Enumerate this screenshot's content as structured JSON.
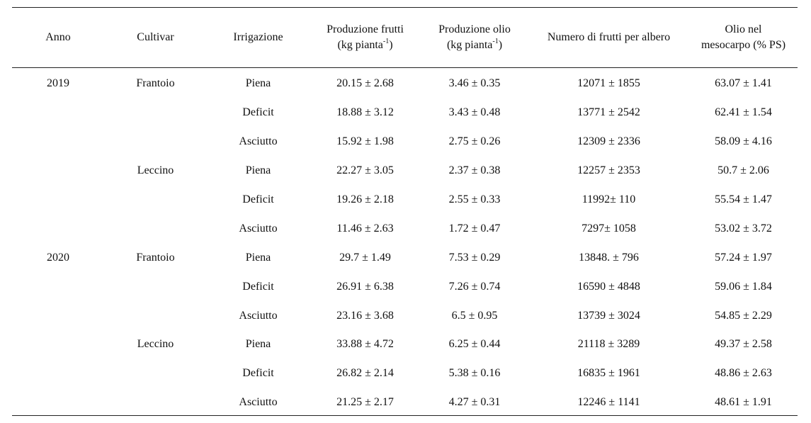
{
  "headers": {
    "anno": "Anno",
    "cultivar": "Cultivar",
    "irrigazione": "Irrigazione",
    "prod_frutti_1": "Produzione frutti",
    "prod_frutti_2": "(kg pianta",
    "prod_frutti_sup": "-1",
    "prod_frutti_3": ")",
    "prod_olio_1": "Produzione olio",
    "prod_olio_2": "(kg pianta",
    "prod_olio_sup": "-1",
    "prod_olio_3": ")",
    "numero_frutti": "Numero di frutti per albero",
    "olio_mesocarpo_1": "Olio nel",
    "olio_mesocarpo_2": "mesocarpo (% PS)"
  },
  "rows": [
    {
      "anno": "2019",
      "cultivar": "Frantoio",
      "irrigazione": "Piena",
      "frutti": "20.15 ± 2.68",
      "olio": "3.46 ± 0.35",
      "numero": "12071 ± 1855",
      "mesocarpo": "63.07 ± 1.41"
    },
    {
      "anno": "",
      "cultivar": "",
      "irrigazione": "Deficit",
      "frutti": "18.88 ± 3.12",
      "olio": "3.43 ± 0.48",
      "numero": "13771 ± 2542",
      "mesocarpo": "62.41 ± 1.54"
    },
    {
      "anno": "",
      "cultivar": "",
      "irrigazione": "Asciutto",
      "frutti": "15.92 ± 1.98",
      "olio": "2.75 ± 0.26",
      "numero": "12309 ± 2336",
      "mesocarpo": "58.09 ± 4.16"
    },
    {
      "anno": "",
      "cultivar": "Leccino",
      "irrigazione": "Piena",
      "frutti": "22.27 ± 3.05",
      "olio": "2.37 ± 0.38",
      "numero": "12257 ± 2353",
      "mesocarpo": "50.7 ± 2.06"
    },
    {
      "anno": "",
      "cultivar": "",
      "irrigazione": "Deficit",
      "frutti": "19.26 ± 2.18",
      "olio": "2.55 ± 0.33",
      "numero": "11992± 110",
      "mesocarpo": "55.54 ± 1.47"
    },
    {
      "anno": "",
      "cultivar": "",
      "irrigazione": "Asciutto",
      "frutti": "11.46 ± 2.63",
      "olio": "1.72 ± 0.47",
      "numero": "7297± 1058",
      "mesocarpo": "53.02 ± 3.72"
    },
    {
      "anno": "2020",
      "cultivar": "Frantoio",
      "irrigazione": "Piena",
      "frutti": "29.7 ± 1.49",
      "olio": "7.53 ± 0.29",
      "numero": "13848. ± 796",
      "mesocarpo": "57.24 ± 1.97"
    },
    {
      "anno": "",
      "cultivar": "",
      "irrigazione": "Deficit",
      "frutti": "26.91 ± 6.38",
      "olio": "7.26 ± 0.74",
      "numero": "16590 ± 4848",
      "mesocarpo": "59.06 ± 1.84"
    },
    {
      "anno": "",
      "cultivar": "",
      "irrigazione": "Asciutto",
      "frutti": "23.16 ± 3.68",
      "olio": "6.5 ± 0.95",
      "numero": "13739 ± 3024",
      "mesocarpo": "54.85 ± 2.29"
    },
    {
      "anno": "",
      "cultivar": "Leccino",
      "irrigazione": "Piena",
      "frutti": "33.88 ± 4.72",
      "olio": "6.25 ± 0.44",
      "numero": "21118 ± 3289",
      "mesocarpo": "49.37 ± 2.58"
    },
    {
      "anno": "",
      "cultivar": "",
      "irrigazione": "Deficit",
      "frutti": "26.82 ± 2.14",
      "olio": "5.38 ± 0.16",
      "numero": "16835 ± 1961",
      "mesocarpo": "48.86 ± 2.63"
    },
    {
      "anno": "",
      "cultivar": "",
      "irrigazione": "Asciutto",
      "frutti": "21.25 ± 2.17",
      "olio": "4.27 ± 0.31",
      "numero": "12246 ± 1141",
      "mesocarpo": "48.61 ± 1.91"
    }
  ]
}
